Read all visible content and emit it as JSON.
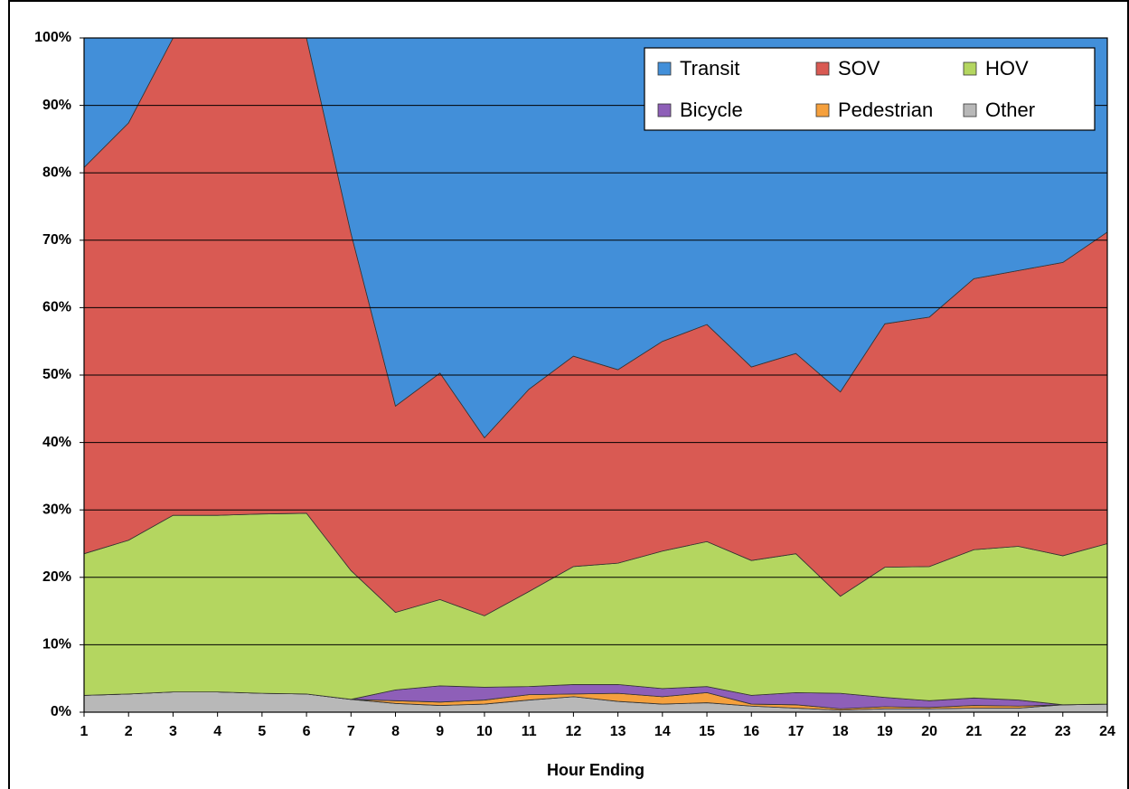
{
  "chart_data": {
    "type": "stacked_area_percent",
    "x_label": "Hour Ending",
    "x": [
      1,
      2,
      3,
      4,
      5,
      6,
      7,
      8,
      9,
      10,
      11,
      12,
      13,
      14,
      15,
      16,
      17,
      18,
      19,
      20,
      21,
      22,
      23,
      24
    ],
    "xlim": [
      1,
      24
    ],
    "xticks": [
      1,
      2,
      3,
      4,
      5,
      6,
      7,
      8,
      9,
      10,
      11,
      12,
      13,
      14,
      15,
      16,
      17,
      18,
      19,
      20,
      21,
      22,
      23,
      24
    ],
    "ylim": [
      0,
      100
    ],
    "yticks": [
      {
        "value": 0,
        "label": "0%"
      },
      {
        "value": 10,
        "label": "10%"
      },
      {
        "value": 20,
        "label": "20%"
      },
      {
        "value": 30,
        "label": "30%"
      },
      {
        "value": 40,
        "label": "40%"
      },
      {
        "value": 50,
        "label": "50%"
      },
      {
        "value": 60,
        "label": "60%"
      },
      {
        "value": 70,
        "label": "70%"
      },
      {
        "value": 80,
        "label": "80%"
      },
      {
        "value": 90,
        "label": "90%"
      },
      {
        "value": 100,
        "label": "100%"
      }
    ],
    "grid": true,
    "legend_position": "top-right",
    "series": [
      {
        "name": "Transit",
        "color": "#428fd9",
        "values": [
          19.2,
          12.6,
          0,
          0,
          0,
          0,
          29.0,
          54.6,
          49.7,
          59.3,
          52.1,
          47.2,
          49.2,
          45.0,
          42.5,
          48.8,
          46.8,
          52.5,
          42.4,
          41.4,
          35.7,
          34.5,
          33.3,
          28.8
        ]
      },
      {
        "name": "SOV",
        "color": "#d95a53",
        "values": [
          57.3,
          61.9,
          70.8,
          70.8,
          70.6,
          70.5,
          50.0,
          30.6,
          33.6,
          26.4,
          30.0,
          31.2,
          28.7,
          31.1,
          32.2,
          28.7,
          29.7,
          30.3,
          36.1,
          37.0,
          40.2,
          40.9,
          43.5,
          46.2
        ]
      },
      {
        "name": "HOV",
        "color": "#b4d660",
        "values": [
          21.0,
          22.8,
          26.2,
          26.2,
          26.6,
          26.8,
          19.1,
          11.5,
          12.8,
          10.6,
          14.1,
          17.5,
          18.0,
          20.4,
          21.5,
          20.0,
          20.6,
          14.4,
          19.3,
          19.9,
          22.0,
          22.8,
          22.1,
          23.8
        ]
      },
      {
        "name": "Bicycle",
        "color": "#8e5fb8",
        "values": [
          0,
          0,
          0,
          0,
          0,
          0,
          0,
          1.6,
          2.4,
          1.9,
          1.2,
          1.4,
          1.3,
          1.2,
          0.9,
          1.3,
          1.8,
          2.3,
          1.4,
          1.0,
          1.1,
          0.9,
          0,
          0
        ]
      },
      {
        "name": "Pedestrian",
        "color": "#f5a03d",
        "values": [
          0,
          0,
          0,
          0,
          0,
          0,
          0,
          0.4,
          0.5,
          0.6,
          0.8,
          0.4,
          1.2,
          1.1,
          1.5,
          0.3,
          0.5,
          0.2,
          0.3,
          0.2,
          0.4,
          0.3,
          0,
          0
        ]
      },
      {
        "name": "Other",
        "color": "#b8b8b8",
        "values": [
          2.5,
          2.7,
          3.0,
          3.0,
          2.8,
          2.7,
          1.9,
          1.3,
          1.0,
          1.2,
          1.8,
          2.3,
          1.6,
          1.2,
          1.4,
          0.9,
          0.6,
          0.3,
          0.5,
          0.5,
          0.6,
          0.6,
          1.1,
          1.2
        ]
      }
    ]
  }
}
